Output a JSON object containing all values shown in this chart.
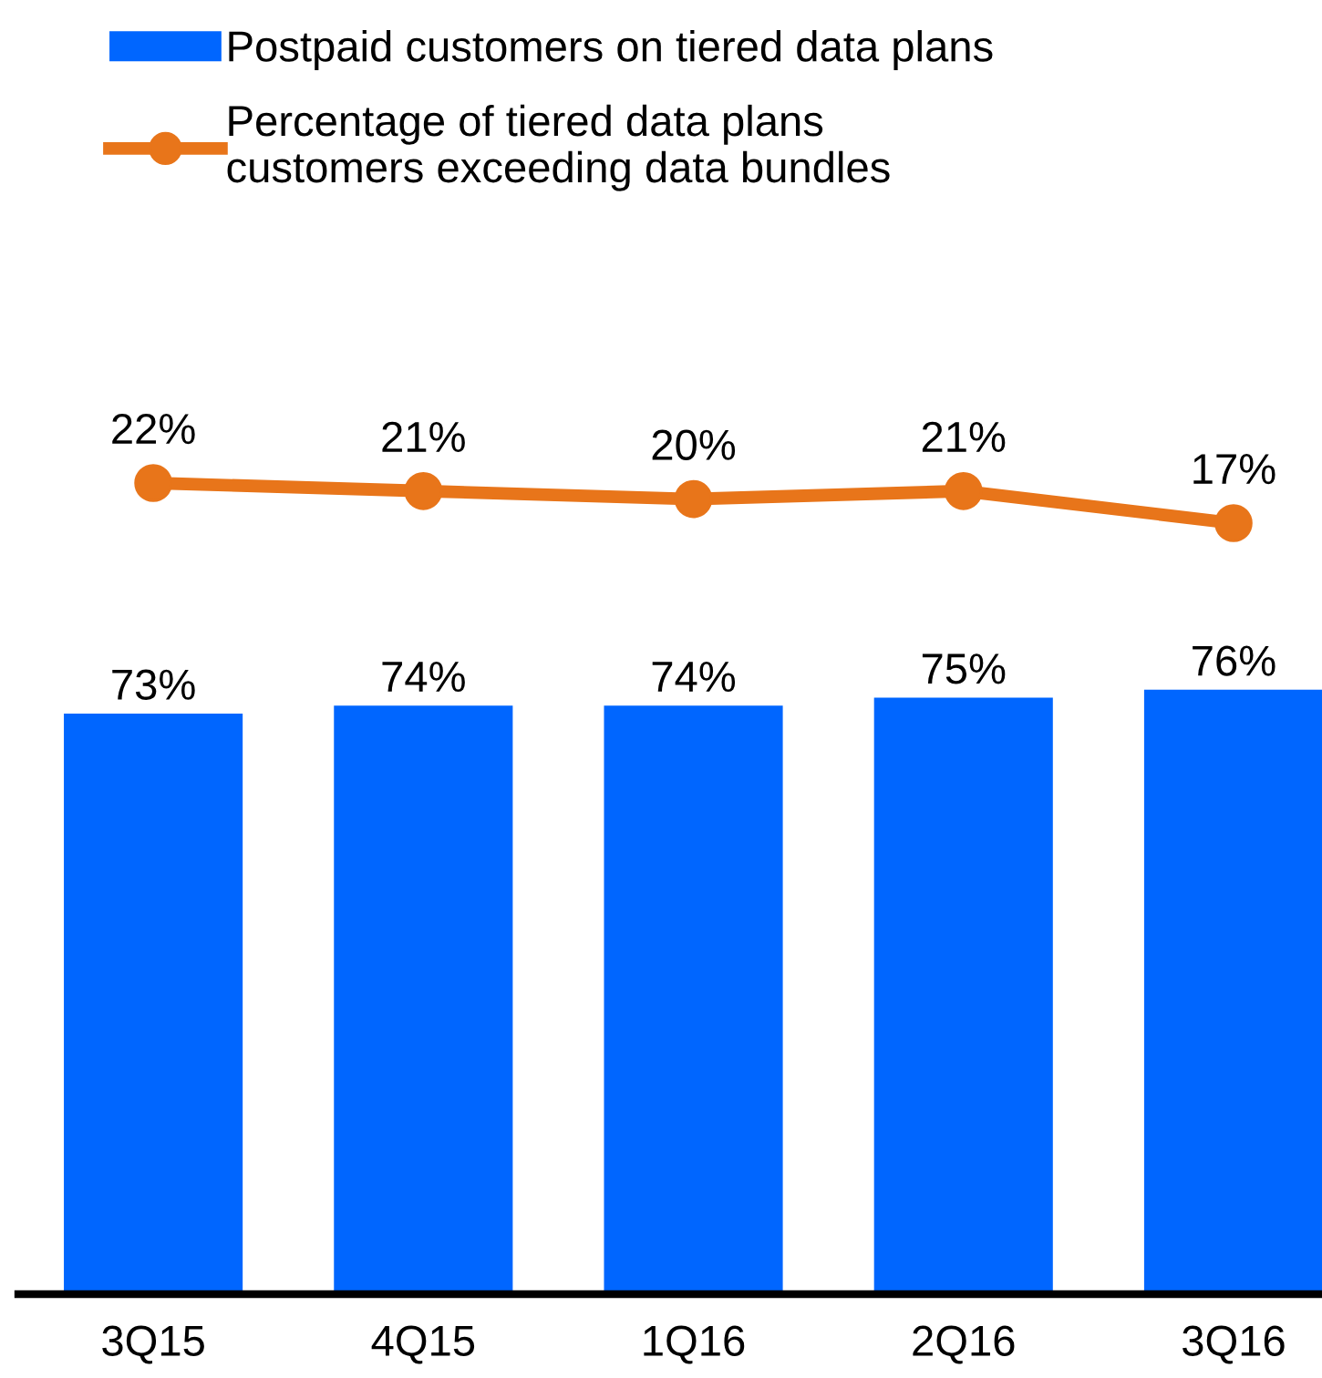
{
  "chart_data": [
    {
      "type": "bar",
      "categories": [
        "3Q15",
        "4Q15",
        "1Q16",
        "2Q16",
        "3Q16"
      ],
      "series": [
        {
          "name": "Postpaid customers on tiered data plans",
          "color": "#0066ff",
          "values": [
            73,
            74,
            74,
            75,
            76
          ],
          "value_labels": [
            "73%",
            "74%",
            "74%",
            "75%",
            "76%"
          ]
        }
      ],
      "legend": "top left",
      "tick_labels": "x"
    },
    {
      "type": "line",
      "categories": [
        null,
        null,
        null,
        null,
        null
      ],
      "series": [
        {
          "name": "Percentage of tiered data plans\ncustomers exceeding data bundles",
          "color": "#e8751a",
          "values": [
            22,
            21,
            20,
            21,
            17
          ],
          "value_labels": [
            "22%",
            "21%",
            "20%",
            "21%",
            "17%"
          ]
        }
      ],
      "marker": "circle",
      "line_style": "solid",
      "legend": "top left"
    }
  ]
}
